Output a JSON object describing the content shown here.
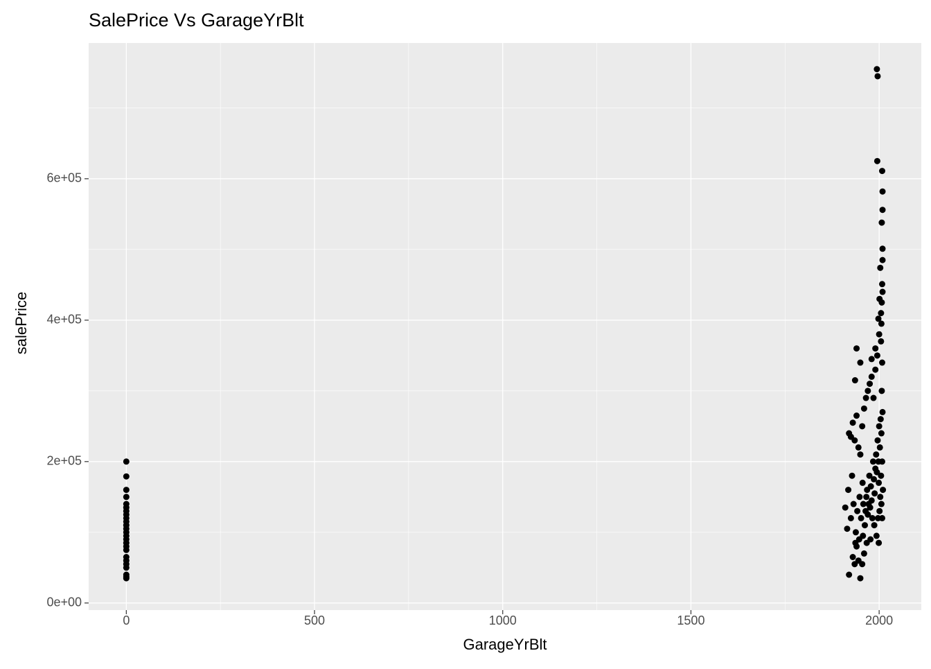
{
  "chart_data": {
    "type": "scatter",
    "title": "SalePrice Vs GarageYrBlt",
    "x_label": "GarageYrBlt",
    "y_label": "salePrice",
    "color": "#000000",
    "xlim": [
      -100,
      2112
    ],
    "ylim": [
      -10000,
      792000
    ],
    "xticks": [
      0,
      500,
      1000,
      1500,
      2000
    ],
    "yticks": [
      {
        "value": 0,
        "label": "0e+00"
      },
      {
        "value": 200000,
        "label": "2e+05"
      },
      {
        "value": 400000,
        "label": "4e+05"
      },
      {
        "value": 600000,
        "label": "6e+05"
      }
    ],
    "grid": true,
    "x": [
      0,
      0,
      0,
      0,
      0,
      0,
      0,
      0,
      0,
      0,
      0,
      0,
      0,
      0,
      0,
      0,
      0,
      0,
      0,
      0,
      0,
      0,
      0,
      0,
      0,
      1994,
      1996,
      1995,
      2008,
      2009,
      2009,
      2007,
      2009,
      2009,
      2003,
      2008,
      2009,
      2001,
      2007,
      2005,
      1998,
      2006,
      1990,
      1940,
      1936,
      1950,
      1980,
      1920,
      1925,
      1930,
      1935,
      1940,
      1945,
      1950,
      1955,
      1960,
      1965,
      1970,
      1975,
      1980,
      1985,
      1990,
      1995,
      2000,
      2005,
      2008,
      1920,
      1950,
      1930,
      1935,
      1945,
      1955,
      1960,
      1940,
      1915,
      1910,
      1918,
      1925,
      1928,
      1932,
      1938,
      1942,
      1948,
      1952,
      1956,
      1958,
      1962,
      1964,
      1966,
      1968,
      1970,
      1972,
      1974,
      1976,
      1978,
      1980,
      1982,
      1984,
      1986,
      1988,
      1990,
      1992,
      1994,
      1996,
      1998,
      2000,
      2002,
      2004,
      2005,
      2006,
      2007,
      2008,
      2009,
      2010,
      2003,
      2001,
      1999,
      1997,
      1993,
      1987,
      1977,
      1967,
      1957,
      1947,
      1937,
      1999,
      2006,
      2008
    ],
    "values": [
      200000,
      179000,
      160000,
      150000,
      140000,
      135000,
      130000,
      125000,
      120000,
      115000,
      110000,
      105000,
      100000,
      95000,
      90000,
      85000,
      80000,
      75000,
      65000,
      60000,
      55000,
      50000,
      40000,
      35000,
      37000,
      755000,
      745000,
      625000,
      611000,
      582000,
      556000,
      538000,
      501000,
      485000,
      474000,
      451000,
      440000,
      430000,
      425000,
      410000,
      402000,
      395000,
      360000,
      360000,
      315000,
      340000,
      345000,
      240000,
      235000,
      255000,
      230000,
      265000,
      220000,
      210000,
      250000,
      275000,
      290000,
      300000,
      310000,
      320000,
      290000,
      330000,
      350000,
      380000,
      370000,
      340000,
      40000,
      35000,
      65000,
      55000,
      60000,
      55000,
      70000,
      80000,
      105000,
      135000,
      160000,
      120000,
      180000,
      140000,
      100000,
      130000,
      150000,
      120000,
      170000,
      140000,
      110000,
      130000,
      150000,
      160000,
      125000,
      140000,
      180000,
      135000,
      165000,
      145000,
      120000,
      200000,
      175000,
      155000,
      190000,
      210000,
      185000,
      230000,
      200000,
      250000,
      220000,
      260000,
      180000,
      240000,
      300000,
      200000,
      270000,
      160000,
      150000,
      130000,
      170000,
      120000,
      95000,
      110000,
      90000,
      85000,
      95000,
      90000,
      85000,
      85000,
      140000,
      120000
    ]
  }
}
